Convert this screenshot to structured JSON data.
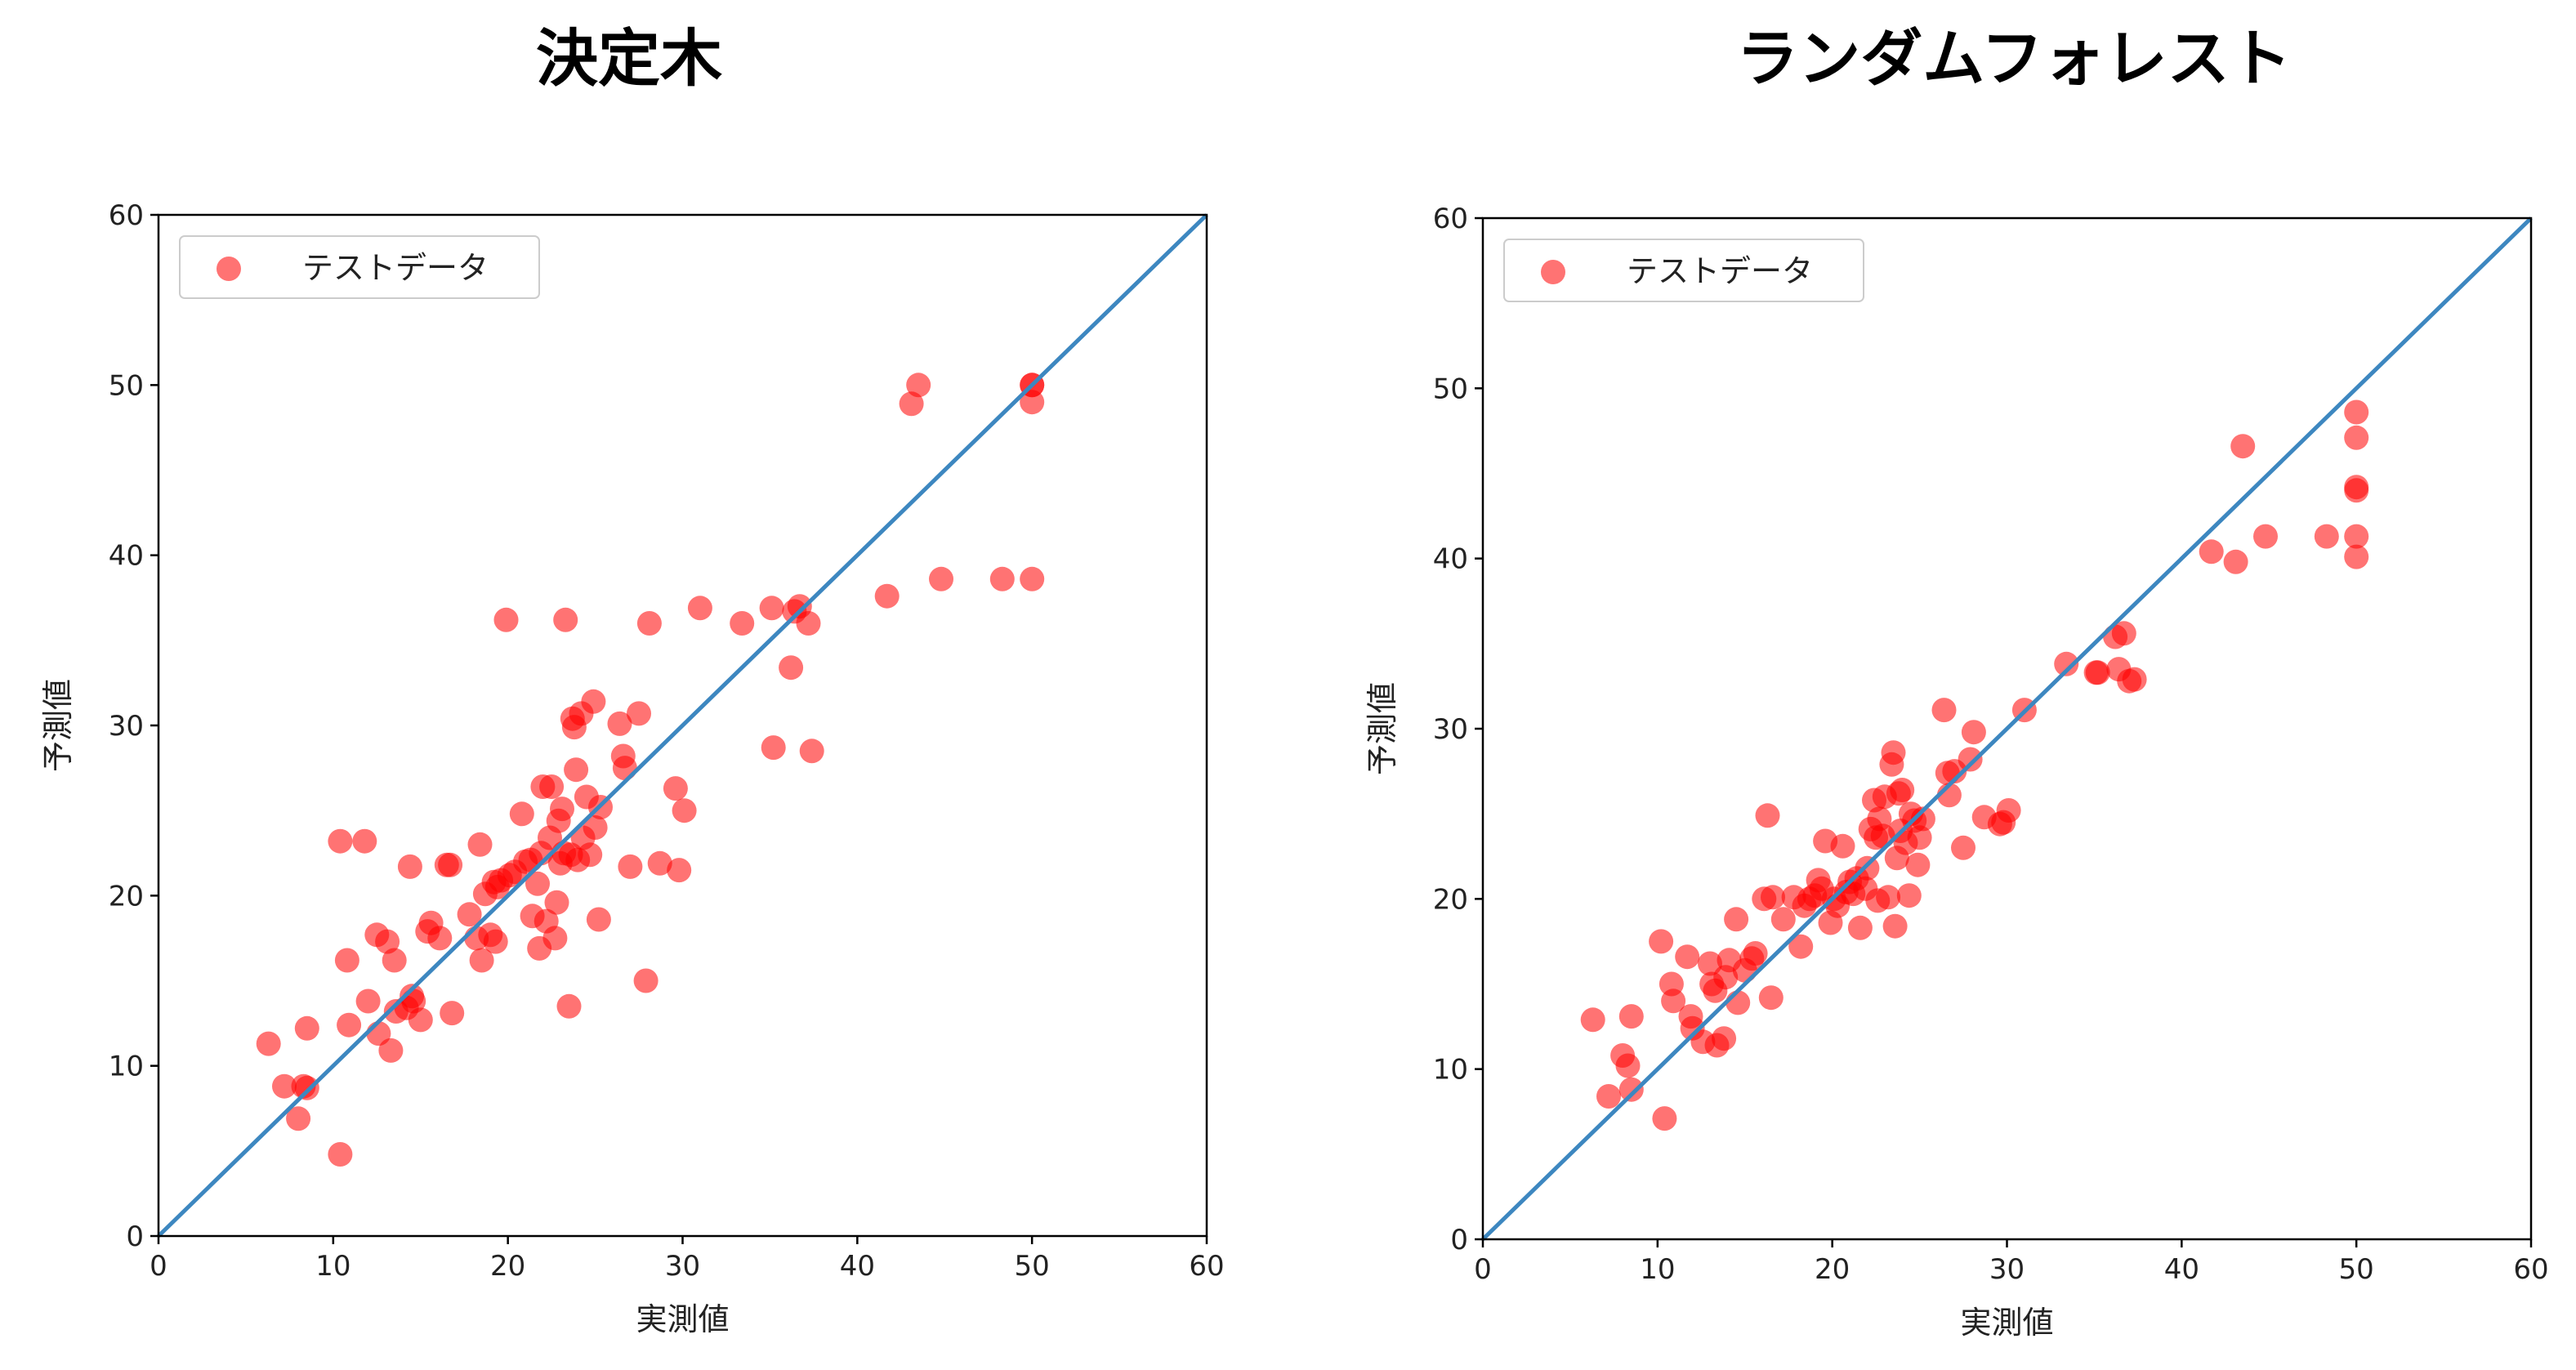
{
  "chart_data": [
    {
      "type": "scatter",
      "title": "決定木",
      "xlabel": "実測値",
      "ylabel": "予測値",
      "xlim": [
        0,
        60
      ],
      "ylim": [
        0,
        60
      ],
      "xticks": [
        0,
        10,
        20,
        30,
        40,
        50,
        60
      ],
      "yticks": [
        0,
        10,
        20,
        30,
        40,
        50,
        60
      ],
      "legend": {
        "label": "テストデータ",
        "position": "upper-left"
      },
      "reference_line": {
        "from": [
          0,
          0
        ],
        "to": [
          60,
          60
        ],
        "color": "#3d87c0"
      },
      "series": [
        {
          "name": "テストデータ",
          "color": "#ff0000",
          "points": [
            [
              6.3,
              11.3
            ],
            [
              7.2,
              8.8
            ],
            [
              8.0,
              6.9
            ],
            [
              8.3,
              8.8
            ],
            [
              8.5,
              8.7
            ],
            [
              8.5,
              12.2
            ],
            [
              10.4,
              4.8
            ],
            [
              10.4,
              23.2
            ],
            [
              10.8,
              16.2
            ],
            [
              10.9,
              12.4
            ],
            [
              11.8,
              23.2
            ],
            [
              12.0,
              13.8
            ],
            [
              12.5,
              17.7
            ],
            [
              12.6,
              11.9
            ],
            [
              13.1,
              17.3
            ],
            [
              13.3,
              10.9
            ],
            [
              13.5,
              16.2
            ],
            [
              13.6,
              13.2
            ],
            [
              14.2,
              13.4
            ],
            [
              14.4,
              21.7
            ],
            [
              14.5,
              14.1
            ],
            [
              14.6,
              13.8
            ],
            [
              15.0,
              12.7
            ],
            [
              15.4,
              17.9
            ],
            [
              15.6,
              18.4
            ],
            [
              16.1,
              17.5
            ],
            [
              16.5,
              21.8
            ],
            [
              16.7,
              21.8
            ],
            [
              16.8,
              13.1
            ],
            [
              17.8,
              18.9
            ],
            [
              18.2,
              17.5
            ],
            [
              18.4,
              23.0
            ],
            [
              18.5,
              16.2
            ],
            [
              18.7,
              20.1
            ],
            [
              19.0,
              17.7
            ],
            [
              19.2,
              20.8
            ],
            [
              19.3,
              17.3
            ],
            [
              19.4,
              20.5
            ],
            [
              19.6,
              20.9
            ],
            [
              19.9,
              36.2
            ],
            [
              20.1,
              21.2
            ],
            [
              20.4,
              21.4
            ],
            [
              20.8,
              24.8
            ],
            [
              21.0,
              22.0
            ],
            [
              21.3,
              22.1
            ],
            [
              21.4,
              18.8
            ],
            [
              21.7,
              20.7
            ],
            [
              21.8,
              16.9
            ],
            [
              21.9,
              22.5
            ],
            [
              22.0,
              26.4
            ],
            [
              22.2,
              18.5
            ],
            [
              22.4,
              23.4
            ],
            [
              22.5,
              26.4
            ],
            [
              22.7,
              17.5
            ],
            [
              22.8,
              19.6
            ],
            [
              22.9,
              24.4
            ],
            [
              23.0,
              21.9
            ],
            [
              23.1,
              25.1
            ],
            [
              23.2,
              22.5
            ],
            [
              23.3,
              36.2
            ],
            [
              23.5,
              13.5
            ],
            [
              23.6,
              22.4
            ],
            [
              23.7,
              30.4
            ],
            [
              23.8,
              29.9
            ],
            [
              23.9,
              27.4
            ],
            [
              24.0,
              22.1
            ],
            [
              24.2,
              30.7
            ],
            [
              24.3,
              23.4
            ],
            [
              24.5,
              25.8
            ],
            [
              24.7,
              22.4
            ],
            [
              24.9,
              31.4
            ],
            [
              25.0,
              24.0
            ],
            [
              25.2,
              18.6
            ],
            [
              25.3,
              25.2
            ],
            [
              26.4,
              30.1
            ],
            [
              26.6,
              28.2
            ],
            [
              26.7,
              27.5
            ],
            [
              27.0,
              21.7
            ],
            [
              27.5,
              30.7
            ],
            [
              27.9,
              15.0
            ],
            [
              28.1,
              36.0
            ],
            [
              28.7,
              21.9
            ],
            [
              29.6,
              26.3
            ],
            [
              29.8,
              21.5
            ],
            [
              30.1,
              25.0
            ],
            [
              31.0,
              36.9
            ],
            [
              33.4,
              36.0
            ],
            [
              35.1,
              36.9
            ],
            [
              35.2,
              28.7
            ],
            [
              36.2,
              33.4
            ],
            [
              36.4,
              36.7
            ],
            [
              36.7,
              37.0
            ],
            [
              37.2,
              36.0
            ],
            [
              37.4,
              28.5
            ],
            [
              41.7,
              37.6
            ],
            [
              43.1,
              48.9
            ],
            [
              43.5,
              50.0
            ],
            [
              44.8,
              38.6
            ],
            [
              48.3,
              38.6
            ],
            [
              50.0,
              50.0
            ],
            [
              50.0,
              50.0
            ],
            [
              50.0,
              49.0
            ],
            [
              50.0,
              38.6
            ]
          ]
        }
      ]
    },
    {
      "type": "scatter",
      "title": "ランダムフォレスト",
      "xlabel": "実測値",
      "ylabel": "予測値",
      "xlim": [
        0,
        60
      ],
      "ylim": [
        0,
        60
      ],
      "xticks": [
        0,
        10,
        20,
        30,
        40,
        50,
        60
      ],
      "yticks": [
        0,
        10,
        20,
        30,
        40,
        50,
        60
      ],
      "legend": {
        "label": "テストデータ",
        "position": "upper-left"
      },
      "reference_line": {
        "from": [
          0,
          0
        ],
        "to": [
          60,
          60
        ],
        "color": "#3d87c0"
      },
      "series": [
        {
          "name": "テストデータ",
          "color": "#ff0000",
          "points": [
            [
              6.3,
              12.9
            ],
            [
              7.2,
              8.4
            ],
            [
              8.0,
              10.8
            ],
            [
              8.3,
              10.2
            ],
            [
              8.5,
              13.1
            ],
            [
              8.5,
              8.8
            ],
            [
              10.2,
              17.5
            ],
            [
              10.4,
              7.1
            ],
            [
              10.8,
              15.0
            ],
            [
              10.9,
              14.0
            ],
            [
              11.7,
              16.6
            ],
            [
              11.9,
              13.1
            ],
            [
              12.0,
              12.4
            ],
            [
              12.6,
              11.6
            ],
            [
              13.0,
              16.2
            ],
            [
              13.1,
              15.0
            ],
            [
              13.3,
              14.6
            ],
            [
              13.4,
              11.4
            ],
            [
              13.8,
              11.8
            ],
            [
              13.9,
              15.4
            ],
            [
              14.1,
              16.4
            ],
            [
              14.5,
              18.8
            ],
            [
              14.6,
              13.9
            ],
            [
              15.0,
              15.8
            ],
            [
              15.4,
              16.5
            ],
            [
              15.6,
              16.8
            ],
            [
              16.1,
              20.0
            ],
            [
              16.3,
              24.9
            ],
            [
              16.5,
              14.2
            ],
            [
              16.6,
              20.1
            ],
            [
              17.2,
              18.8
            ],
            [
              17.8,
              20.1
            ],
            [
              18.2,
              17.2
            ],
            [
              18.4,
              19.6
            ],
            [
              18.7,
              20.0
            ],
            [
              19.0,
              20.2
            ],
            [
              19.2,
              21.1
            ],
            [
              19.4,
              20.6
            ],
            [
              19.6,
              23.4
            ],
            [
              19.9,
              18.6
            ],
            [
              20.1,
              20.0
            ],
            [
              20.3,
              19.6
            ],
            [
              20.6,
              23.1
            ],
            [
              20.8,
              20.4
            ],
            [
              21.0,
              21.0
            ],
            [
              21.2,
              20.3
            ],
            [
              21.4,
              21.2
            ],
            [
              21.6,
              18.3
            ],
            [
              21.9,
              20.6
            ],
            [
              22.0,
              21.8
            ],
            [
              22.2,
              24.1
            ],
            [
              22.4,
              25.8
            ],
            [
              22.5,
              23.6
            ],
            [
              22.6,
              19.9
            ],
            [
              22.7,
              24.7
            ],
            [
              22.9,
              23.7
            ],
            [
              23.0,
              26.0
            ],
            [
              23.2,
              20.1
            ],
            [
              23.4,
              27.9
            ],
            [
              23.5,
              28.6
            ],
            [
              23.6,
              18.4
            ],
            [
              23.7,
              22.4
            ],
            [
              23.8,
              26.2
            ],
            [
              23.9,
              24.0
            ],
            [
              24.0,
              26.4
            ],
            [
              24.2,
              23.3
            ],
            [
              24.4,
              20.2
            ],
            [
              24.5,
              25.0
            ],
            [
              24.7,
              24.6
            ],
            [
              24.9,
              22.0
            ],
            [
              25.0,
              23.6
            ],
            [
              25.2,
              24.7
            ],
            [
              26.4,
              31.1
            ],
            [
              26.6,
              27.4
            ],
            [
              26.7,
              26.1
            ],
            [
              27.0,
              27.5
            ],
            [
              27.5,
              23.0
            ],
            [
              27.9,
              28.2
            ],
            [
              28.1,
              29.8
            ],
            [
              28.7,
              24.8
            ],
            [
              29.6,
              24.4
            ],
            [
              29.8,
              24.5
            ],
            [
              30.1,
              25.2
            ],
            [
              31.0,
              31.1
            ],
            [
              33.4,
              33.8
            ],
            [
              35.1,
              33.3
            ],
            [
              35.2,
              33.3
            ],
            [
              36.2,
              35.4
            ],
            [
              36.4,
              33.5
            ],
            [
              36.7,
              35.6
            ],
            [
              37.0,
              32.8
            ],
            [
              37.3,
              32.9
            ],
            [
              41.7,
              40.4
            ],
            [
              43.1,
              39.8
            ],
            [
              43.5,
              46.6
            ],
            [
              44.8,
              41.3
            ],
            [
              48.3,
              41.3
            ],
            [
              50.0,
              48.6
            ],
            [
              50.0,
              47.1
            ],
            [
              50.0,
              44.2
            ],
            [
              50.0,
              44.0
            ],
            [
              50.0,
              41.3
            ],
            [
              50.0,
              40.1
            ]
          ]
        }
      ]
    }
  ]
}
